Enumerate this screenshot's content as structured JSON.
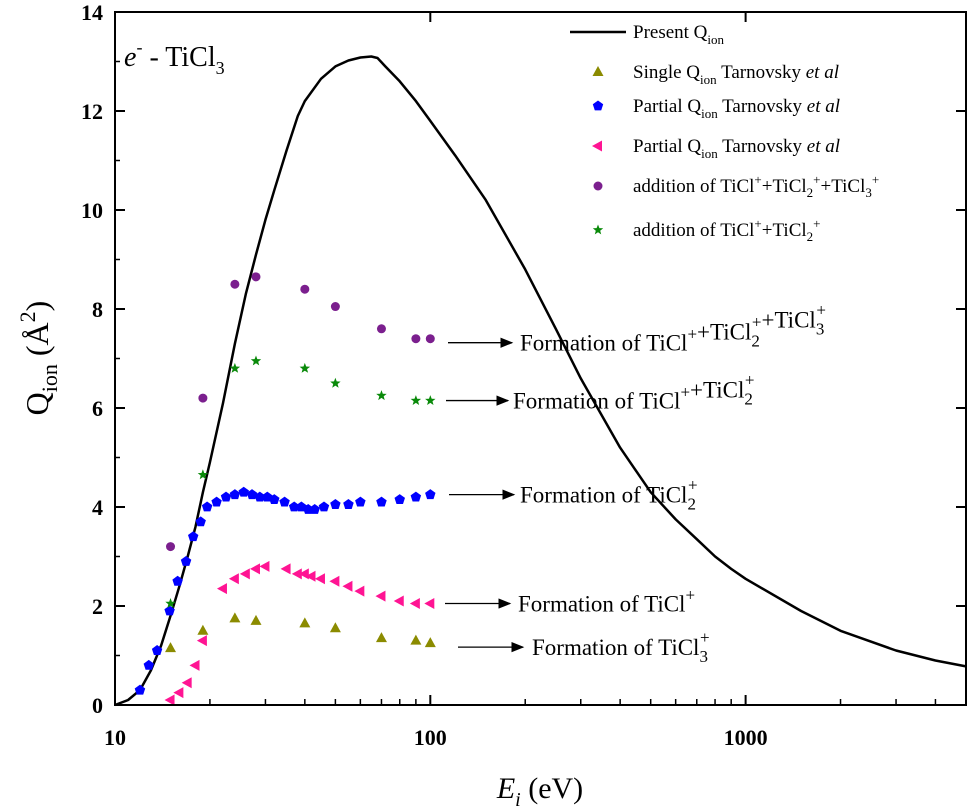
{
  "chart_data": {
    "type": "scatter",
    "xscale": "log",
    "xlim": [
      10,
      5000
    ],
    "ylim": [
      0,
      14
    ],
    "xticks": [
      10,
      100,
      1000
    ],
    "yticks": [
      0,
      2,
      4,
      6,
      8,
      10,
      12,
      14
    ],
    "xtick_labels": [
      "10",
      "100",
      "1000"
    ],
    "ytick_labels": [
      "0",
      "2",
      "4",
      "6",
      "8",
      "10",
      "12",
      "14"
    ],
    "title": {
      "main": "e",
      "sup": "-",
      "mid": " - TiCl",
      "sub": "3"
    },
    "ylabel": {
      "main": "Q",
      "sub": "ion",
      "unit": " (Å",
      "sup": "2",
      "close": ")"
    },
    "xlabel": {
      "main": "E",
      "sub": "i",
      "unit": " (eV)"
    },
    "series": [
      {
        "name": "Present Q_ion",
        "kind": "line",
        "color": "#000000",
        "legend": {
          "t1": "Present Q",
          "sub": "ion",
          "t2": "",
          "ital": ""
        },
        "x": [
          10,
          11,
          12,
          13,
          14,
          15,
          16,
          17,
          18,
          19,
          20,
          22,
          24,
          26,
          28,
          30,
          32,
          35,
          38,
          40,
          45,
          50,
          55,
          60,
          65,
          68,
          72,
          80,
          90,
          100,
          120,
          150,
          200,
          250,
          300,
          400,
          500,
          600,
          700,
          800,
          900,
          1000,
          1500,
          2000,
          3000,
          4000,
          5000
        ],
        "y": [
          0,
          0.1,
          0.3,
          0.7,
          1.2,
          1.8,
          2.4,
          3.0,
          3.6,
          4.3,
          4.9,
          6.1,
          7.3,
          8.3,
          9.1,
          9.8,
          10.4,
          11.2,
          11.9,
          12.2,
          12.65,
          12.9,
          13.02,
          13.08,
          13.1,
          13.07,
          12.9,
          12.6,
          12.2,
          11.8,
          11.1,
          10.2,
          8.8,
          7.6,
          6.6,
          5.2,
          4.3,
          3.75,
          3.35,
          3.0,
          2.75,
          2.55,
          1.9,
          1.5,
          1.1,
          0.9,
          0.78
        ]
      },
      {
        "name": "Single Q_ion Tarnovsky et al",
        "kind": "marker",
        "marker": "triangle-up",
        "color": "#8b8b00",
        "legend": {
          "t1": "Single Q",
          "sub": "ion",
          "t2": " Tarnovsky ",
          "ital": "et al"
        },
        "x": [
          15,
          19,
          24,
          28,
          40,
          50,
          70,
          90,
          100
        ],
        "y": [
          1.15,
          1.5,
          1.75,
          1.7,
          1.65,
          1.55,
          1.35,
          1.3,
          1.25
        ]
      },
      {
        "name": "Partial Q_ion Tarnovsky et al (TiCl2+)",
        "kind": "marker",
        "marker": "pentagon",
        "color": "#0000ff",
        "legend": {
          "t1": "Partial Q",
          "sub": "ion",
          "t2": " Tarnovsky ",
          "ital": "et al"
        },
        "x": [
          12,
          12.8,
          13.6,
          14.9,
          15.8,
          16.8,
          17.7,
          18.7,
          19.6,
          21,
          22.5,
          24,
          25.6,
          27.2,
          28.8,
          30.4,
          32,
          34.5,
          37,
          39,
          41,
          43,
          46,
          50,
          55,
          60,
          70,
          80,
          90,
          100
        ],
        "y": [
          0.3,
          0.8,
          1.1,
          1.9,
          2.5,
          2.9,
          3.4,
          3.7,
          4.0,
          4.1,
          4.2,
          4.25,
          4.3,
          4.25,
          4.2,
          4.2,
          4.15,
          4.1,
          4.0,
          4.0,
          3.95,
          3.95,
          4.0,
          4.05,
          4.05,
          4.1,
          4.1,
          4.15,
          4.2,
          4.25
        ]
      },
      {
        "name": "Partial Q_ion Tarnovsky et al (TiCl+)",
        "kind": "marker",
        "marker": "triangle-left",
        "color": "#ff1493",
        "legend": {
          "t1": "Partial Q",
          "sub": "ion",
          "t2": " Tarnovsky ",
          "ital": "et al"
        },
        "x": [
          15,
          16,
          17,
          18,
          19,
          22,
          24,
          26,
          28,
          30,
          35,
          38,
          40,
          42,
          45,
          50,
          55,
          60,
          70,
          80,
          90,
          100
        ],
        "y": [
          0.1,
          0.25,
          0.45,
          0.8,
          1.3,
          2.35,
          2.55,
          2.65,
          2.75,
          2.8,
          2.75,
          2.65,
          2.65,
          2.6,
          2.55,
          2.5,
          2.4,
          2.3,
          2.2,
          2.1,
          2.05,
          2.05
        ]
      },
      {
        "name": "addition of TiCl+ + TiCl2+ + TiCl3+",
        "kind": "marker",
        "marker": "circle",
        "color": "#7b1f8e",
        "legend": {
          "t1": "addition of TiCl",
          "sub": "",
          "t2": "",
          "ital": "",
          "formula": [
            "addition of TiCl",
            "+",
            "+TiCl",
            "2",
            "+",
            "+TiCl",
            "3",
            "+"
          ]
        },
        "x": [
          15,
          19,
          24,
          28,
          40,
          50,
          70,
          90,
          100
        ],
        "y": [
          3.2,
          6.2,
          8.5,
          8.65,
          8.4,
          8.05,
          7.6,
          7.4,
          7.4
        ]
      },
      {
        "name": "addition of TiCl+ + TiCl2+",
        "kind": "marker",
        "marker": "star",
        "color": "#0a8a0a",
        "legend": {
          "t1": "addition of TiCl",
          "sub": "",
          "t2": "",
          "ital": "",
          "formula": [
            "addition of TiCl",
            "+",
            "+TiCl",
            "2",
            "+"
          ]
        },
        "x": [
          15,
          19,
          24,
          28,
          40,
          50,
          70,
          90,
          100
        ],
        "y": [
          2.05,
          4.65,
          6.8,
          6.95,
          6.8,
          6.5,
          6.25,
          6.15,
          6.15
        ]
      }
    ],
    "annotations": [
      {
        "prefix": "Formation of TiCl",
        "parts": [
          [
            "sup",
            "+"
          ],
          [
            "txt",
            "+TiCl"
          ],
          [
            "subsup",
            "2",
            "+"
          ],
          [
            "txt",
            "+TiCl"
          ],
          [
            "subsup",
            "3",
            "+"
          ]
        ],
        "y": 7.4
      },
      {
        "prefix": "Formation of  TiCl",
        "parts": [
          [
            "sup",
            "+"
          ],
          [
            "txt",
            "+TiCl"
          ],
          [
            "subsup",
            "2",
            "+"
          ]
        ],
        "y": 6.15
      },
      {
        "prefix": "Formation of TiCl",
        "parts": [
          [
            "subsup",
            "2",
            "+"
          ]
        ],
        "y": 4.25
      },
      {
        "prefix": "Formation of TiCl",
        "parts": [
          [
            "sup",
            "+"
          ]
        ],
        "y": 2.05
      },
      {
        "prefix": "Formation of TiCl",
        "parts": [
          [
            "subsup",
            "3",
            "+"
          ]
        ],
        "y": 1.25
      }
    ]
  }
}
